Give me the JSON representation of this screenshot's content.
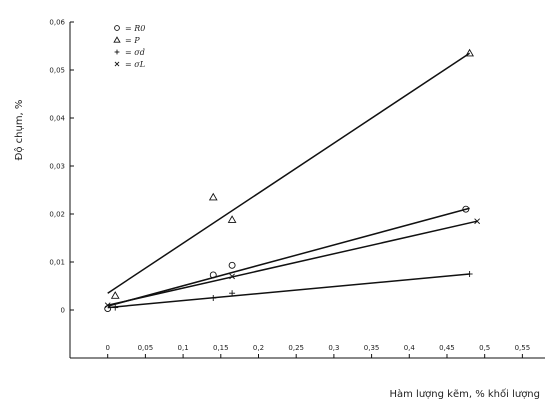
{
  "chart_data": {
    "type": "scatter",
    "title": "",
    "xlabel": "Hàm lượng kẽm, % khối lượng",
    "ylabel": "Độ chụm, %",
    "xlim": [
      -0.05,
      0.58
    ],
    "ylim": [
      -0.01,
      0.06
    ],
    "x_ticks": [
      0,
      0.05,
      0.1,
      0.15,
      0.2,
      0.25,
      0.3,
      0.35,
      0.4,
      0.45,
      0.5,
      0.55
    ],
    "x_tick_labels": [
      "0",
      "0,05",
      "0,1",
      "0,15",
      "0,2",
      "0,25",
      "0,3",
      "0,35",
      "0,4",
      "0,45",
      "0,5",
      "0,55"
    ],
    "y_ticks": [
      0,
      0.01,
      0.02,
      0.03,
      0.04,
      0.05,
      0.06
    ],
    "y_tick_labels": [
      "0",
      "0,01",
      "0,02",
      "0,03",
      "0,04",
      "0,05",
      "0,06"
    ],
    "grid": false,
    "legend_placement": "top-left",
    "series": [
      {
        "marker": "circle",
        "legend_symbol": "○",
        "name": "= R0",
        "points": [
          [
            0.0,
            0.0003
          ],
          [
            0.14,
            0.0073
          ],
          [
            0.165,
            0.0093
          ],
          [
            0.475,
            0.021
          ]
        ],
        "fit": [
          [
            0.0,
            0.0008
          ],
          [
            0.48,
            0.0212
          ]
        ]
      },
      {
        "marker": "triangle",
        "legend_symbol": "△",
        "name": "= P",
        "points": [
          [
            0.01,
            0.003
          ],
          [
            0.14,
            0.0235
          ],
          [
            0.165,
            0.0188
          ],
          [
            0.48,
            0.0535
          ]
        ],
        "fit": [
          [
            0.0,
            0.0035
          ],
          [
            0.48,
            0.0535
          ]
        ]
      },
      {
        "marker": "plus",
        "legend_symbol": "+",
        "name": "= σd",
        "points": [
          [
            0.01,
            0.0005
          ],
          [
            0.14,
            0.0025
          ],
          [
            0.165,
            0.0035
          ],
          [
            0.48,
            0.0075
          ]
        ],
        "fit": [
          [
            0.0,
            0.0005
          ],
          [
            0.48,
            0.0075
          ]
        ]
      },
      {
        "marker": "cross",
        "legend_symbol": "×",
        "name": "= σL",
        "points": [
          [
            0.0,
            0.001
          ],
          [
            0.165,
            0.007
          ],
          [
            0.49,
            0.0185
          ]
        ],
        "fit": [
          [
            0.0,
            0.001
          ],
          [
            0.49,
            0.0185
          ]
        ]
      }
    ]
  }
}
